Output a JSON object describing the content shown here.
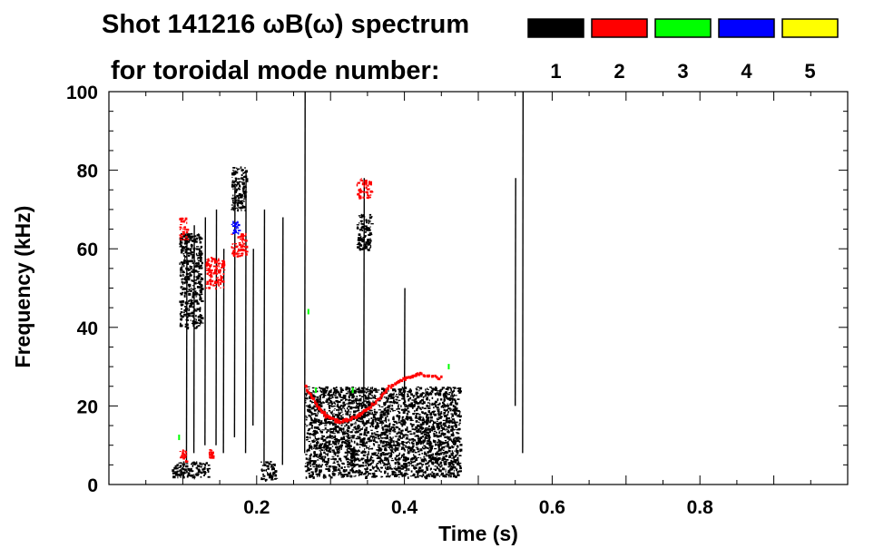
{
  "chart_data": {
    "type": "heatmap",
    "title_line1": "Shot 141216 ωB(ω) spectrum",
    "title_line2": "for toroidal mode number:",
    "xlabel": "Time (s)",
    "ylabel": "Frequency (kHz)",
    "xlim": [
      0.0,
      1.0
    ],
    "ylim": [
      0,
      100
    ],
    "x_ticks": [
      0.2,
      0.4,
      0.6,
      0.8
    ],
    "x_tick_labels": [
      "0.2",
      "0.4",
      "0.6",
      "0.8"
    ],
    "y_ticks": [
      0,
      20,
      40,
      60,
      80,
      100
    ],
    "y_tick_labels": [
      "0",
      "20",
      "40",
      "60",
      "80",
      "100"
    ],
    "grid": false,
    "legend_position": "top-right",
    "legend": [
      {
        "label": "1",
        "color": "#000000"
      },
      {
        "label": "2",
        "color": "#ff0000"
      },
      {
        "label": "3",
        "color": "#00ff00"
      },
      {
        "label": "4",
        "color": "#0000ff"
      },
      {
        "label": "5",
        "color": "#ffff00"
      }
    ],
    "series": [
      {
        "mode": "1",
        "color": "#000000",
        "regions": [
          {
            "t": [
              0.095,
              0.125
            ],
            "f": [
              40,
              64
            ]
          },
          {
            "t": [
              0.085,
              0.135
            ],
            "f": [
              2,
              6
            ]
          },
          {
            "t": [
              0.165,
              0.185
            ],
            "f": [
              70,
              81
            ]
          },
          {
            "t": [
              0.205,
              0.225
            ],
            "f": [
              1,
              6
            ]
          },
          {
            "t": [
              0.265,
              0.475
            ],
            "f": [
              2,
              25
            ]
          },
          {
            "t": [
              0.335,
              0.355
            ],
            "f": [
              60,
              69
            ]
          }
        ],
        "streaks": [
          {
            "t": 0.105,
            "f": [
              6,
              64
            ]
          },
          {
            "t": 0.115,
            "f": [
              8,
              66
            ]
          },
          {
            "t": 0.13,
            "f": [
              10,
              68
            ]
          },
          {
            "t": 0.145,
            "f": [
              10,
              70
            ]
          },
          {
            "t": 0.155,
            "f": [
              8,
              60
            ]
          },
          {
            "t": 0.17,
            "f": [
              12,
              76
            ]
          },
          {
            "t": 0.185,
            "f": [
              8,
              80
            ]
          },
          {
            "t": 0.195,
            "f": [
              15,
              60
            ]
          },
          {
            "t": 0.21,
            "f": [
              5,
              70
            ]
          },
          {
            "t": 0.235,
            "f": [
              5,
              68
            ]
          },
          {
            "t": 0.265,
            "f": [
              8,
              100
            ]
          },
          {
            "t": 0.345,
            "f": [
              20,
              78
            ]
          },
          {
            "t": 0.4,
            "f": [
              20,
              50
            ]
          },
          {
            "t": 0.55,
            "f": [
              20,
              78
            ]
          },
          {
            "t": 0.56,
            "f": [
              8,
              100
            ]
          }
        ]
      },
      {
        "mode": "2",
        "color": "#ff0000",
        "regions": [
          {
            "t": [
              0.095,
              0.105
            ],
            "f": [
              62,
              68
            ]
          },
          {
            "t": [
              0.13,
              0.155
            ],
            "f": [
              50,
              58
            ]
          },
          {
            "t": [
              0.165,
              0.185
            ],
            "f": [
              58,
              64
            ]
          },
          {
            "t": [
              0.095,
              0.105
            ],
            "f": [
              6,
              9
            ]
          },
          {
            "t": [
              0.135,
              0.14
            ],
            "f": [
              7,
              9
            ]
          },
          {
            "t": [
              0.335,
              0.355
            ],
            "f": [
              73,
              78
            ]
          }
        ],
        "curve": [
          [
            0.265,
            25
          ],
          [
            0.28,
            20
          ],
          [
            0.295,
            17
          ],
          [
            0.31,
            16
          ],
          [
            0.325,
            16.5
          ],
          [
            0.34,
            18
          ],
          [
            0.36,
            21
          ],
          [
            0.38,
            25
          ],
          [
            0.4,
            27
          ],
          [
            0.42,
            28
          ],
          [
            0.45,
            27
          ]
        ]
      },
      {
        "mode": "3",
        "color": "#00ff00",
        "points": [
          [
            0.095,
            12
          ],
          [
            0.27,
            44
          ],
          [
            0.28,
            24
          ],
          [
            0.33,
            24
          ],
          [
            0.46,
            30
          ]
        ]
      },
      {
        "mode": "4",
        "color": "#0000ff",
        "regions": [
          {
            "t": [
              0.165,
              0.175
            ],
            "f": [
              64,
              68
            ]
          }
        ]
      }
    ]
  }
}
